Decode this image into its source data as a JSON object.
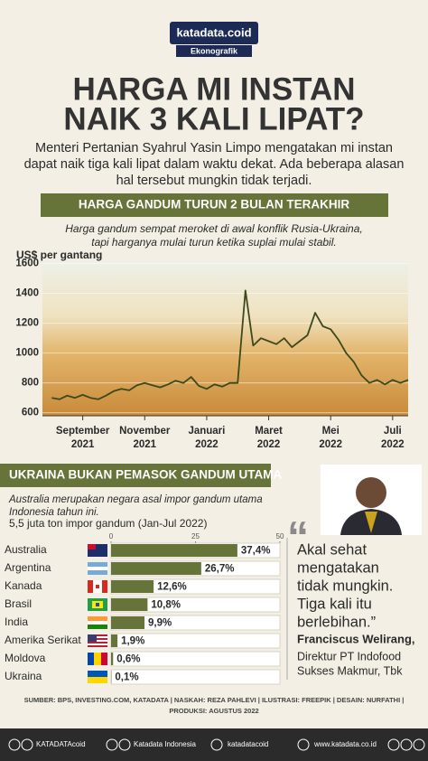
{
  "header": {
    "brand": "katadata.coid",
    "section": "Ekonografik",
    "title": [
      "HARGA MI INSTAN",
      "NAIK 3 KALI LIPAT?"
    ],
    "intro": [
      "Menteri Pertanian Syahrul Yasin Limpo mengatakan mi instan",
      "dapat naik tiga kali lipat dalam waktu dekat. Ada beberapa alasan",
      "hal tersebut mungkin tidak terjadi."
    ]
  },
  "chart_data": [
    {
      "type": "line",
      "title": "HARGA GANDUM TURUN 2 BULAN TERAKHIR",
      "subtitle": [
        "Harga gandum sempat meroket di awal konflik Rusia-Ukraina,",
        "tapi harganya mulai turun ketika suplai mulai stabil."
      ],
      "y_label": "US$ per gantang",
      "color": "#3b4a1c",
      "x": [
        0,
        0.25,
        0.5,
        0.75,
        1,
        1.25,
        1.5,
        1.75,
        2,
        2.25,
        2.5,
        2.75,
        3,
        3.25,
        3.5,
        3.75,
        4,
        4.25,
        4.5,
        4.75,
        5,
        5.25,
        5.5,
        5.75,
        6,
        6.25,
        6.5,
        6.75,
        7,
        7.25,
        7.5,
        7.75,
        8,
        8.25,
        8.5,
        8.75,
        9,
        9.25,
        9.5,
        9.75,
        10,
        10.25,
        10.5,
        10.75,
        11,
        11.25,
        11.5
      ],
      "values": [
        700,
        690,
        715,
        700,
        720,
        700,
        690,
        715,
        745,
        760,
        750,
        785,
        800,
        785,
        770,
        790,
        815,
        800,
        840,
        780,
        760,
        790,
        775,
        800,
        800,
        1420,
        1050,
        1100,
        1080,
        1060,
        1100,
        1040,
        1080,
        1120,
        1270,
        1180,
        1160,
        1090,
        1000,
        940,
        850,
        800,
        820,
        790,
        820,
        800,
        820
      ],
      "xlim": [
        -0.3,
        11.5
      ],
      "xticks": [
        {
          "value": 1,
          "label": "September 2021"
        },
        {
          "value": 3,
          "label": "November 2021"
        },
        {
          "value": 5,
          "label": "Januari 2022"
        },
        {
          "value": 7,
          "label": "Maret 2022"
        },
        {
          "value": 9,
          "label": "Mei 2022"
        },
        {
          "value": 11,
          "label": "Juli 2022"
        }
      ],
      "ylim": [
        580,
        1610
      ],
      "yticks": [
        600,
        800,
        1000,
        1200,
        1400,
        1600
      ]
    },
    {
      "type": "bar",
      "orientation": "horizontal",
      "title": "UKRAINA BUKAN PEMASOK GANDUM UTAMA",
      "subtitle": [
        "Australia merupakan negara asal impor gandum utama",
        "Indonesia tahun ini."
      ],
      "caption": "5,5 juta ton impor gandum",
      "caption_period": "(Jan-Jul 2022)",
      "color": "#66743a",
      "categories": [
        "Australia",
        "Argentina",
        "Kanada",
        "Brasil",
        "India",
        "Amerika Serikat",
        "Moldova",
        "Ukraina"
      ],
      "values": [
        37.4,
        26.7,
        12.6,
        10.8,
        9.9,
        1.9,
        0.6,
        0.1
      ],
      "value_labels": [
        "37,4%",
        "26,7%",
        "12,6%",
        "10,8%",
        "9,9%",
        "1,9%",
        "0,6%",
        "0,1%"
      ],
      "xlim": [
        0,
        50
      ],
      "xticks": [
        0,
        25,
        50
      ]
    }
  ],
  "quote": {
    "open_mark": "“",
    "text": [
      "Akal sehat",
      "mengatakan",
      "tidak mungkin.",
      "Tiga kali itu",
      "berlebihan.”"
    ],
    "name": "Franciscus Welirang,",
    "role": [
      "Direktur PT Indofood",
      "Sukses Makmur, Tbk"
    ]
  },
  "footer": {
    "credits": [
      "SUMBER: BPS, INVESTING.COM, KATADATA | NASKAH: REZA PAHLEVI | ILUSTRASI: FREEPIK | DESAIN: NURFATHI |",
      "PRODUKSI: AGUSTUS 2022"
    ],
    "social": [
      "KATADATAcoid",
      "Katadata Indonesia",
      "katadatacoid",
      "www.katadata.co.id"
    ]
  }
}
